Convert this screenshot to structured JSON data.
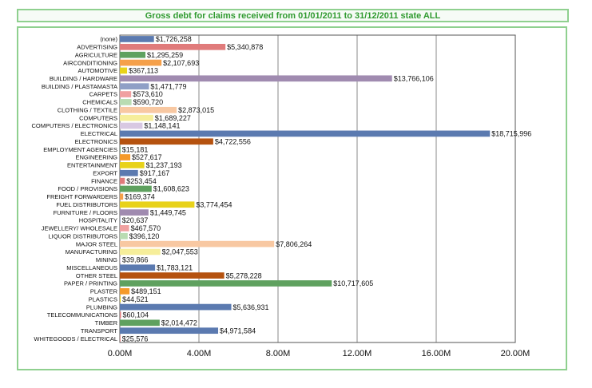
{
  "chart_data": {
    "type": "bar",
    "orientation": "horizontal",
    "title": "Gross debt for claims received from 01/01/2011 to 31/12/2011 state ALL",
    "xlim": [
      0,
      20000000
    ],
    "x_ticks": [
      "0.00M",
      "4.00M",
      "8.00M",
      "12.00M",
      "16.00M",
      "20.00M"
    ],
    "grid": "vertical",
    "categories": [
      "(none)",
      "ADVERTISING",
      "AGRICULTURE",
      "AIRCONDITIONING",
      "AUTOMOTIVE",
      "BUILDING / HARDWARE",
      "BUILDING / PLASTAMASTA",
      "CARPETS",
      "CHEMICALS",
      "CLOTHING / TEXTILE",
      "COMPUTERS",
      "COMPUTERS / ELECTRONICS",
      "ELECTRICAL",
      "ELECTRONICS",
      "EMPLOYMENT AGENCIES",
      "ENGINEERING",
      "ENTERTAINMENT",
      "EXPORT",
      "FINANCE",
      "FOOD / PROVISIONS",
      "FREIGHT FORWARDERS",
      "FUEL DISTRIBUTORS",
      "FURNITURE / FLOORS",
      "HOSPITALITY",
      "JEWELLERY/ WHOLESALE",
      "LIQUOR DISTRIBUTORS",
      "MAJOR STEEL",
      "MANUFACTURING",
      "MINING",
      "MISCELLANEOUS",
      "OTHER STEEL",
      "PAPER / PRINTING",
      "PLASTER",
      "PLASTICS",
      "PLUMBING",
      "TELECOMMUNICATIONS",
      "TIMBER",
      "TRANSPORT",
      "WHITEGOODS / ELECTRICAL"
    ],
    "values": [
      1726258,
      5340878,
      1295259,
      2107693,
      367113,
      13766106,
      1471779,
      573610,
      590720,
      2873015,
      1689227,
      1148141,
      18715996,
      4722556,
      15181,
      527617,
      1237193,
      917167,
      253454,
      1608623,
      169374,
      3774454,
      1449745,
      20637,
      467570,
      396120,
      7806264,
      2047553,
      39866,
      1783121,
      5278228,
      10717605,
      489151,
      44521,
      5636931,
      60104,
      2014472,
      4971584,
      25576
    ],
    "labels": [
      "$1,726,258",
      "$5,340,878",
      "$1,295,259",
      "$2,107,693",
      "$367,113",
      "$13,766,106",
      "$1,471,779",
      "$573,610",
      "$590,720",
      "$2,873,015",
      "$1,689,227",
      "$1,148,141",
      "$18,715,996",
      "$4,722,556",
      "$15,181",
      "$527,617",
      "$1,237,193",
      "$917,167",
      "$253,454",
      "$1,608,623",
      "$169,374",
      "$3,774,454",
      "$1,449,745",
      "$20,637",
      "$467,570",
      "$396,120",
      "$7,806,264",
      "$2,047,553",
      "$39,866",
      "$1,783,121",
      "$5,278,228",
      "$10,717,605",
      "$489,151",
      "$44,521",
      "$5,636,931",
      "$60,104",
      "$2,014,472",
      "$4,971,584",
      "$25,576"
    ],
    "colors": [
      "#5b7ab0",
      "#e07b7b",
      "#5fa15f",
      "#f5a04a",
      "#e8d21a",
      "#a08bb0",
      "#8f9fc6",
      "#f0a0a0",
      "#b9dcb2",
      "#f8c8a2",
      "#f6ee9a",
      "#d8c8e2",
      "#5b7ab0",
      "#b5520f",
      "#5fa15f",
      "#f59a2a",
      "#e8d21a",
      "#5b7ab0",
      "#e07b7b",
      "#5fa15f",
      "#f5a04a",
      "#e8d21a",
      "#a08bb0",
      "#8f9fc6",
      "#f0a0a0",
      "#b9dcb2",
      "#f8c8a2",
      "#f6ee9a",
      "#d8c8e2",
      "#5b7ab0",
      "#b5520f",
      "#5fa15f",
      "#f59a2a",
      "#e8d21a",
      "#5b7ab0",
      "#e07b7b",
      "#5fa15f",
      "#5b7ab0",
      "#e07b7b"
    ]
  }
}
